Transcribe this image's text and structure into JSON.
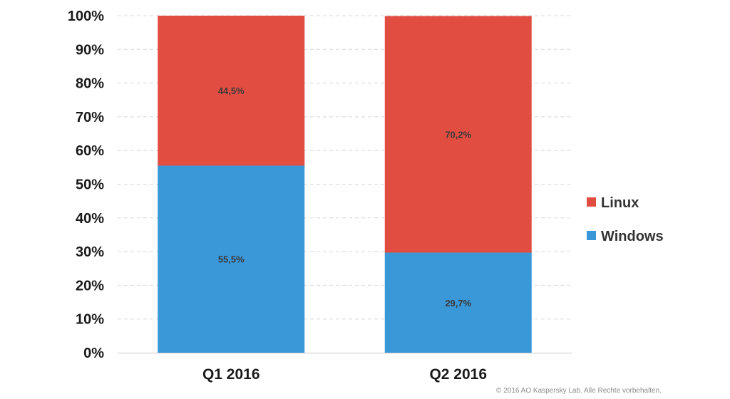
{
  "chart_data": {
    "type": "bar",
    "stacked": true,
    "categories": [
      "Q1 2016",
      "Q2 2016"
    ],
    "series": [
      {
        "name": "Windows",
        "color": "#3a97d8",
        "values": [
          55.5,
          29.7
        ],
        "labels": [
          "55,5%",
          "29,7%"
        ]
      },
      {
        "name": "Linux",
        "color": "#e24d42",
        "values": [
          44.5,
          70.2
        ],
        "labels": [
          "44,5%",
          "70,2%"
        ]
      }
    ],
    "y_ticks": [
      "0%",
      "10%",
      "20%",
      "30%",
      "40%",
      "50%",
      "60%",
      "70%",
      "80%",
      "90%",
      "100%"
    ],
    "ylim": [
      0,
      100
    ],
    "title": "",
    "xlabel": "",
    "ylabel": "",
    "grid": true,
    "legend": {
      "placement": "right",
      "entries": [
        "Linux",
        "Windows"
      ]
    }
  },
  "footer": {
    "copyright": "© 2016 AO Kaspersky Lab. Alle Rechte vorbehalten."
  }
}
